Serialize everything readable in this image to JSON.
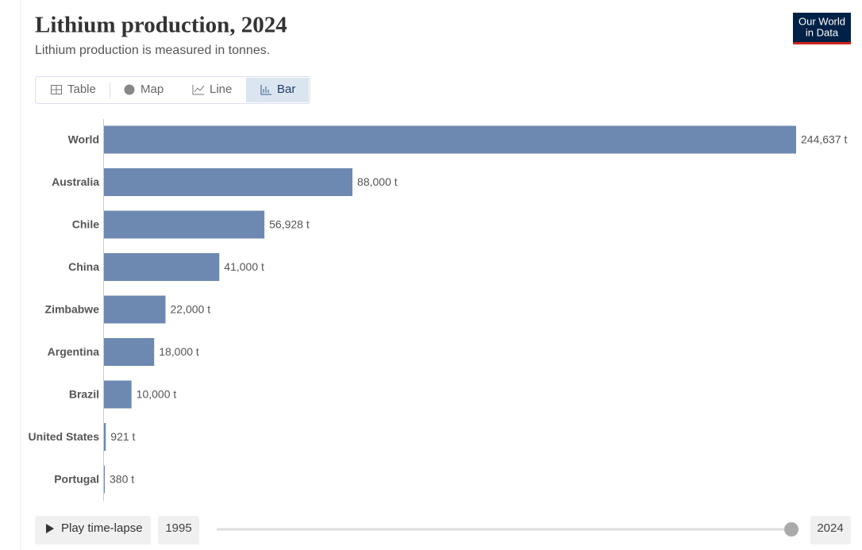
{
  "chart_data": {
    "type": "bar",
    "orientation": "horizontal",
    "title": "Lithium production, 2024",
    "subtitle": "Lithium production is measured in tonnes.",
    "categories": [
      "World",
      "Australia",
      "Chile",
      "China",
      "Zimbabwe",
      "Argentina",
      "Brazil",
      "United States",
      "Portugal"
    ],
    "values": [
      244637,
      88000,
      56928,
      41000,
      22000,
      18000,
      10000,
      921,
      380
    ],
    "value_labels": [
      "244,637 t",
      "88,000 t",
      "56,928 t",
      "41,000 t",
      "22,000 t",
      "18,000 t",
      "10,000 t",
      "921 t",
      "380 t"
    ],
    "color": "#6d88b1"
  },
  "logo": {
    "line1": "Our World",
    "line2": "in Data"
  },
  "tabs": [
    "Table",
    "Map",
    "Line",
    "Bar"
  ],
  "timeline": {
    "play": "Play time-lapse",
    "start": "1995",
    "end": "2024"
  }
}
